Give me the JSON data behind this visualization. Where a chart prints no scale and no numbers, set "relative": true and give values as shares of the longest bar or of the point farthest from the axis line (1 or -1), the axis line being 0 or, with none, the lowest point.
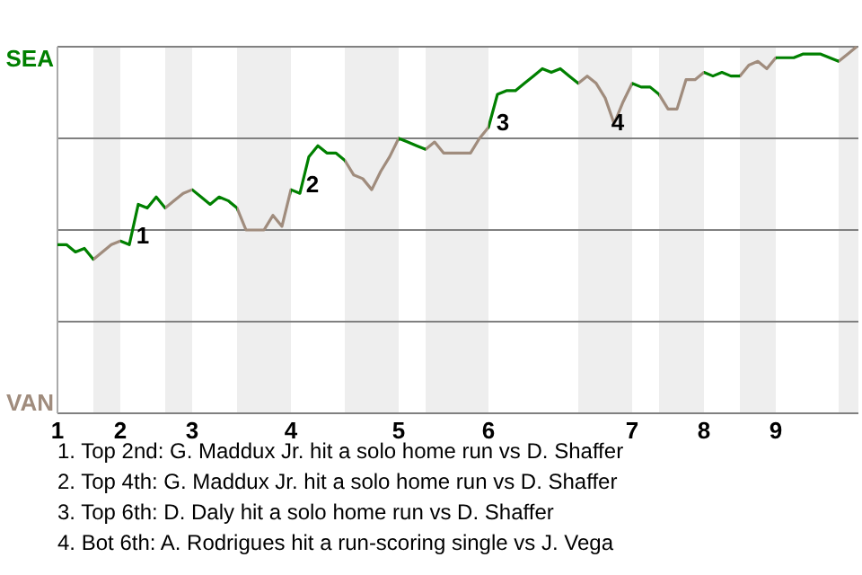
{
  "chart_data": {
    "type": "line",
    "relative": true,
    "categories": [
      "1",
      null,
      null,
      null,
      null,
      null,
      null,
      "2",
      null,
      null,
      null,
      null,
      null,
      null,
      null,
      "3",
      null,
      null,
      null,
      null,
      null,
      null,
      null,
      null,
      null,
      null,
      "4",
      null,
      null,
      null,
      null,
      null,
      null,
      null,
      null,
      null,
      null,
      null,
      "5",
      null,
      null,
      null,
      null,
      null,
      null,
      null,
      null,
      null,
      "6",
      null,
      null,
      null,
      null,
      null,
      null,
      null,
      null,
      null,
      null,
      null,
      null,
      null,
      null,
      null,
      "7",
      null,
      null,
      null,
      null,
      null,
      null,
      null,
      "8",
      null,
      null,
      null,
      null,
      null,
      null,
      null,
      "9",
      null,
      null,
      null,
      null,
      null,
      null,
      null,
      null,
      null
    ],
    "series": [
      {
        "values": [
          0.46,
          0.46,
          0.44,
          0.45,
          0.42,
          0.44,
          0.46,
          0.47,
          0.46,
          0.57,
          0.56,
          0.59,
          0.56,
          0.58,
          0.6,
          0.61,
          0.59,
          0.57,
          0.59,
          0.58,
          0.56,
          0.5,
          0.5,
          0.5,
          0.54,
          0.51,
          0.61,
          0.6,
          0.7,
          0.73,
          0.71,
          0.71,
          0.69,
          0.65,
          0.64,
          0.61,
          0.66,
          0.7,
          0.75,
          0.74,
          0.73,
          0.72,
          0.74,
          0.71,
          0.71,
          0.71,
          0.71,
          0.75,
          0.78,
          0.87,
          0.88,
          0.88,
          0.9,
          0.92,
          0.94,
          0.93,
          0.94,
          0.92,
          0.9,
          0.92,
          0.9,
          0.86,
          0.79,
          0.85,
          0.9,
          0.89,
          0.89,
          0.87,
          0.83,
          0.83,
          0.91,
          0.91,
          0.93,
          0.92,
          0.93,
          0.92,
          0.92,
          0.95,
          0.96,
          0.94,
          0.97,
          0.97,
          0.97,
          0.98,
          0.98,
          0.98,
          0.97,
          0.96,
          0.98,
          1.0
        ],
        "colors": [
          "#008000",
          "#008000",
          "#008000",
          "#008000",
          "#a08c7d",
          "#a08c7d",
          "#a08c7d",
          "#008000",
          "#008000",
          "#008000",
          "#008000",
          "#008000",
          "#a08c7d",
          "#a08c7d",
          "#a08c7d",
          "#008000",
          "#008000",
          "#008000",
          "#008000",
          "#008000",
          "#a08c7d",
          "#a08c7d",
          "#a08c7d",
          "#a08c7d",
          "#a08c7d",
          "#a08c7d",
          "#008000",
          "#008000",
          "#008000",
          "#008000",
          "#008000",
          "#008000",
          "#a08c7d",
          "#a08c7d",
          "#a08c7d",
          "#a08c7d",
          "#a08c7d",
          "#a08c7d",
          "#008000",
          "#008000",
          "#008000",
          "#a08c7d",
          "#a08c7d",
          "#a08c7d",
          "#a08c7d",
          "#a08c7d",
          "#a08c7d",
          "#a08c7d",
          "#008000",
          "#008000",
          "#008000",
          "#008000",
          "#008000",
          "#008000",
          "#008000",
          "#008000",
          "#008000",
          "#008000",
          "#a08c7d",
          "#a08c7d",
          "#a08c7d",
          "#a08c7d",
          "#a08c7d",
          "#a08c7d",
          "#008000",
          "#008000",
          "#008000",
          "#a08c7d",
          "#a08c7d",
          "#a08c7d",
          "#a08c7d",
          "#a08c7d",
          "#008000",
          "#008000",
          "#008000",
          "#008000",
          "#a08c7d",
          "#a08c7d",
          "#a08c7d",
          "#a08c7d",
          "#008000",
          "#008000",
          "#008000",
          "#008000",
          "#008000",
          "#008000",
          "#008000",
          "#a08c7d",
          "#a08c7d",
          "#a08c7d"
        ]
      }
    ],
    "grid": "y",
    "annotations": [
      "SEA",
      "VAN",
      "1",
      "2",
      "3",
      "4",
      "1. Top 2nd: G. Maddux Jr. hit a solo home run vs D. Shaffer",
      "2. Top 4th: G. Maddux Jr. hit a solo home run vs D. Shaffer",
      "3. Top 6th: D. Daly hit a solo home run vs D. Shaffer",
      "4. Bot 6th: A. Rodrigues hit a run-scoring single vs J. Vega"
    ]
  }
}
